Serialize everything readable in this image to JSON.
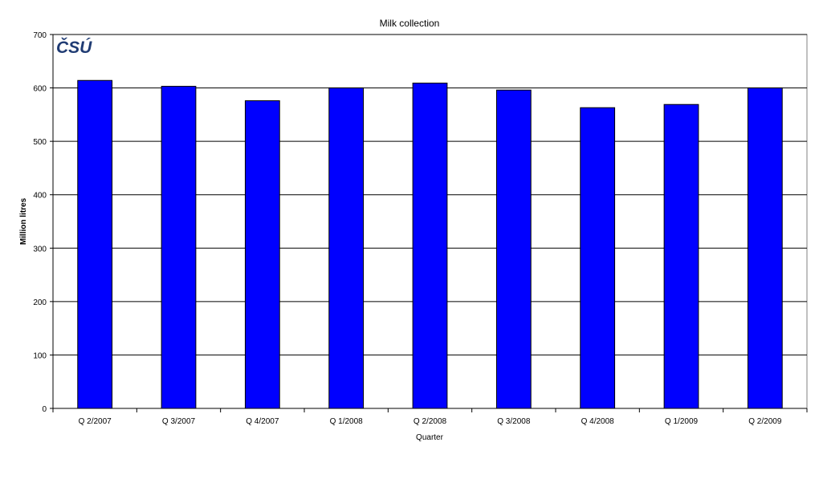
{
  "logo": {
    "text": "ČSÚ",
    "color": "#1f3b73"
  },
  "chart_data": {
    "type": "bar",
    "title": "Milk collection",
    "xlabel": "Quarter",
    "ylabel": "Million litres",
    "categories": [
      "Q 2/2007",
      "Q 3/2007",
      "Q 4/2007",
      "Q 1/2008",
      "Q 2/2008",
      "Q 3/2008",
      "Q 4/2008",
      "Q 1/2009",
      "Q 2/2009"
    ],
    "values": [
      614,
      603,
      576,
      600,
      609,
      596,
      563,
      569,
      600
    ],
    "ylim": [
      0,
      700
    ],
    "yticks": [
      0,
      100,
      200,
      300,
      400,
      500,
      600,
      700
    ],
    "grid": true,
    "legend": "none",
    "bar_color": "#0000ff"
  }
}
